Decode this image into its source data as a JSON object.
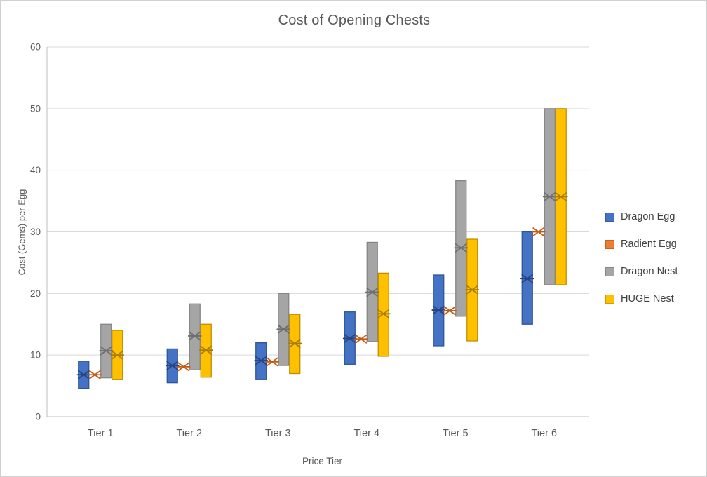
{
  "chart_data": {
    "type": "range-bar",
    "title": "Cost of Opening Chests",
    "xlabel": "Price Tier",
    "ylabel": "Cost (Gems) per Egg",
    "categories": [
      "Tier 1",
      "Tier 2",
      "Tier 3",
      "Tier 4",
      "Tier 5",
      "Tier 6"
    ],
    "ylim": [
      0,
      60
    ],
    "yticks": [
      0,
      10,
      20,
      30,
      40,
      50,
      60
    ],
    "grid": true,
    "legend_position": "right",
    "marker_style": "x-with-median-line",
    "series": [
      {
        "name": "Dragon Egg",
        "color": "#4472C4",
        "border_color": "#2E5596",
        "marker_color": "#26437E",
        "low": [
          4.6,
          5.5,
          6.0,
          8.5,
          11.5,
          15.0
        ],
        "high": [
          9.0,
          11.0,
          12.0,
          17.0,
          23.0,
          30.0
        ],
        "mean": [
          6.8,
          8.3,
          9.1,
          12.7,
          17.3,
          22.4
        ]
      },
      {
        "name": "Radient Egg",
        "color": "#ED7D31",
        "border_color": "#C55A11",
        "marker_color": "#C55A11",
        "low": [
          6.8,
          8.1,
          8.9,
          12.6,
          17.2,
          30.0
        ],
        "high": [
          6.8,
          8.1,
          8.9,
          12.6,
          17.2,
          30.0
        ],
        "mean": [
          6.8,
          8.1,
          8.9,
          12.6,
          17.2,
          30.0
        ]
      },
      {
        "name": "Dragon Nest",
        "color": "#A5A5A5",
        "border_color": "#848484",
        "marker_color": "#6E6E6E",
        "low": [
          6.3,
          7.6,
          8.3,
          12.2,
          16.3,
          21.4
        ],
        "high": [
          15.0,
          18.3,
          20.0,
          28.3,
          38.3,
          50.0
        ],
        "mean": [
          10.7,
          13.1,
          14.2,
          20.2,
          27.4,
          35.7
        ]
      },
      {
        "name": "HUGE Nest",
        "color": "#FFC000",
        "border_color": "#BC8C00",
        "marker_color": "#A97D00",
        "low": [
          6.0,
          6.4,
          7.0,
          9.8,
          12.3,
          21.4
        ],
        "high": [
          14.0,
          15.0,
          16.6,
          23.3,
          28.8,
          50.0
        ],
        "mean": [
          10.0,
          10.8,
          11.9,
          16.7,
          20.6,
          35.7
        ]
      }
    ],
    "style": {
      "gridline_color": "#D9D9D9",
      "axis_line_color": "#BFBFBF",
      "tick_label_color": "#595959",
      "title_color": "#595959",
      "legend_text_color": "#404040"
    }
  }
}
